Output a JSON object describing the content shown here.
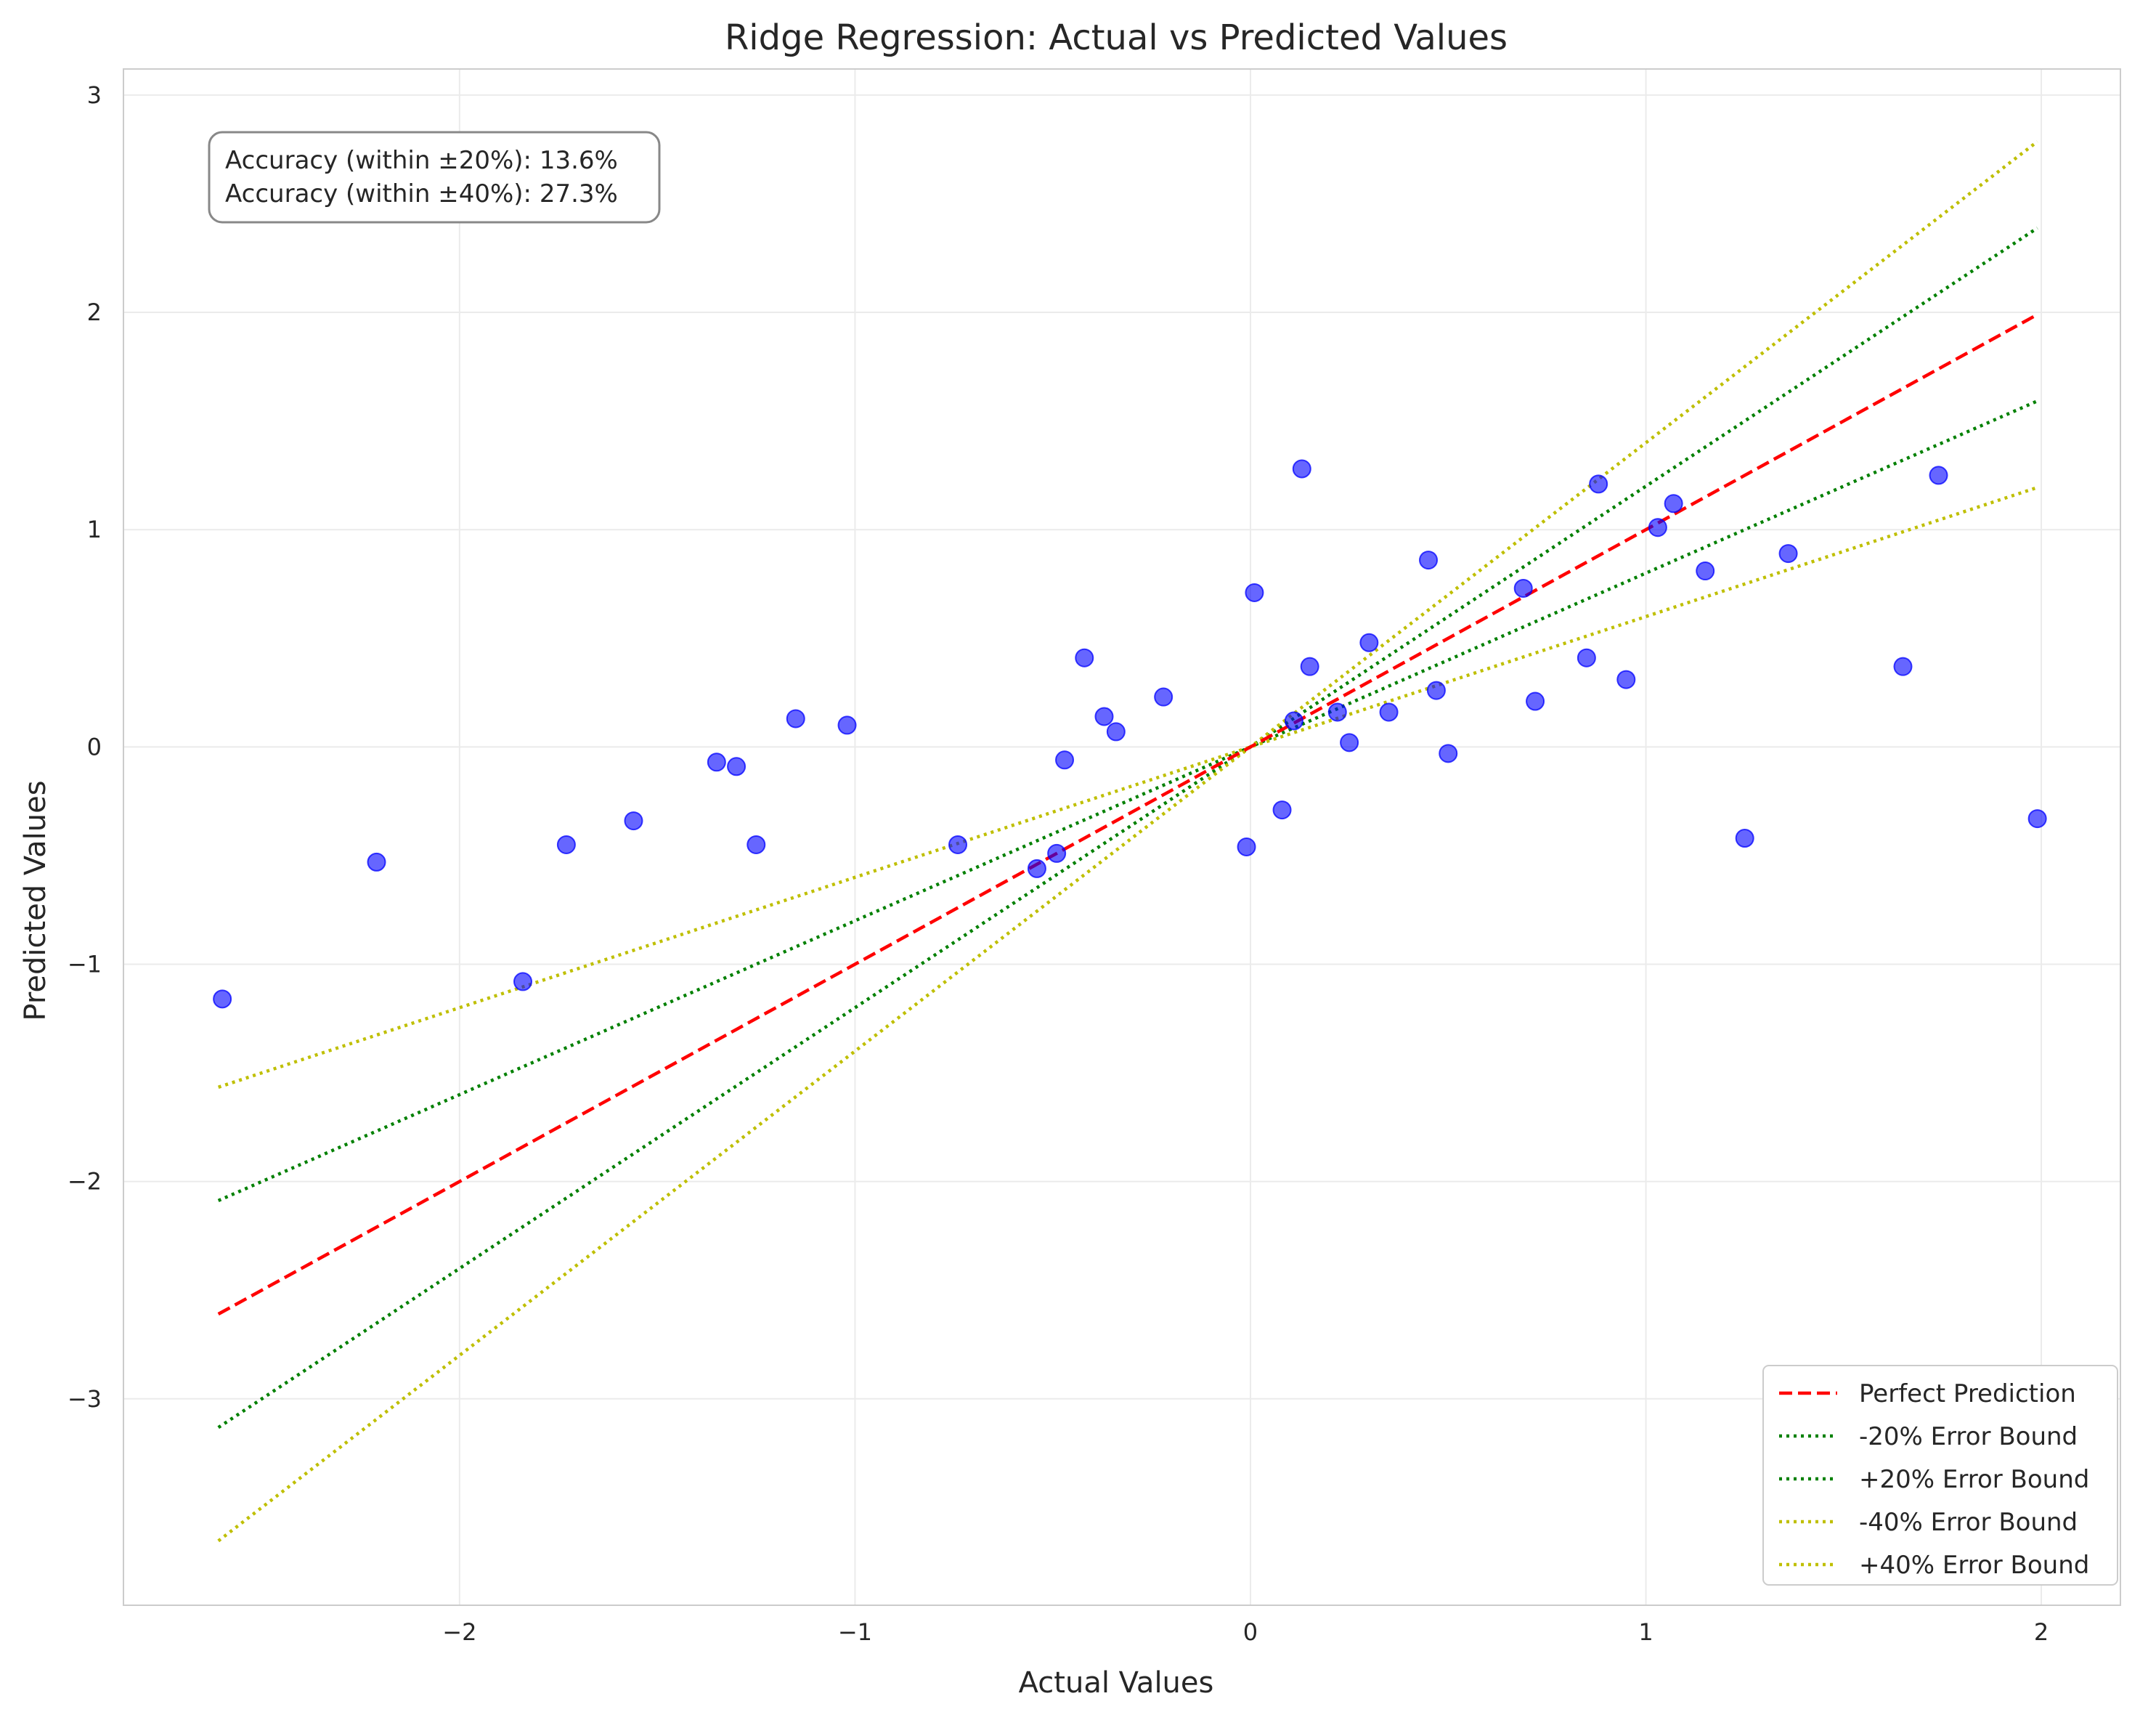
{
  "chart_data": {
    "type": "scatter",
    "title": "Ridge Regression: Actual vs Predicted Values",
    "xlabel": "Actual Values",
    "ylabel": "Predicted Values",
    "xlim": [
      -2.85,
      2.2
    ],
    "ylim": [
      -3.95,
      3.12
    ],
    "xticks": [
      -2,
      -1,
      0,
      1,
      2
    ],
    "yticks": [
      -3,
      -2,
      -1,
      0,
      1,
      2,
      3
    ],
    "xtick_labels": [
      "−2",
      "−1",
      "0",
      "1",
      "2"
    ],
    "ytick_labels": [
      "−3",
      "−2",
      "−1",
      "0",
      "1",
      "2",
      "3"
    ],
    "grid": true,
    "legend_position": "bottom-right",
    "annotation": [
      "Accuracy (within ±20%): 13.6%",
      "Accuracy (within ±40%): 27.3%"
    ],
    "line_range": [
      -2.61,
      1.99
    ],
    "series": [
      {
        "name": "Perfect Prediction",
        "kind": "line",
        "factor": 1.0,
        "color": "#ff0000",
        "dash": "dashed"
      },
      {
        "name": "-20% Error Bound",
        "kind": "line",
        "factor": 0.8,
        "color": "#008000",
        "dash": "dotted"
      },
      {
        "name": "+20% Error Bound",
        "kind": "line",
        "factor": 1.2,
        "color": "#008000",
        "dash": "dotted"
      },
      {
        "name": "-40% Error Bound",
        "kind": "line",
        "factor": 0.6,
        "color": "#bfbf00",
        "dash": "dotted"
      },
      {
        "name": "+40% Error Bound",
        "kind": "line",
        "factor": 1.4,
        "color": "#bfbf00",
        "dash": "dotted"
      }
    ],
    "points": {
      "color": "#0000ff",
      "x": [
        -2.6,
        -2.21,
        -1.84,
        -1.73,
        -1.56,
        -1.35,
        -1.3,
        -1.25,
        -1.15,
        -1.02,
        -0.74,
        -0.54,
        -0.49,
        -0.47,
        -0.42,
        -0.37,
        -0.34,
        -0.22,
        -0.01,
        0.01,
        0.08,
        0.11,
        0.13,
        0.15,
        0.22,
        0.25,
        0.3,
        0.35,
        0.45,
        0.47,
        0.5,
        0.69,
        0.72,
        0.85,
        0.88,
        0.95,
        1.03,
        1.07,
        1.15,
        1.25,
        1.36,
        1.65,
        1.74,
        1.99
      ],
      "y": [
        -1.16,
        -0.53,
        -1.08,
        -0.45,
        -0.34,
        -0.07,
        -0.09,
        -0.45,
        0.13,
        0.1,
        -0.45,
        -0.56,
        -0.49,
        -0.06,
        0.41,
        0.14,
        0.07,
        0.23,
        -0.46,
        0.71,
        -0.29,
        0.12,
        1.28,
        0.37,
        0.16,
        0.02,
        0.48,
        0.16,
        0.86,
        0.26,
        -0.03,
        0.73,
        0.21,
        0.41,
        1.21,
        0.31,
        1.01,
        1.12,
        0.81,
        -0.42,
        0.89,
        0.37,
        1.25,
        -0.33
      ]
    }
  }
}
